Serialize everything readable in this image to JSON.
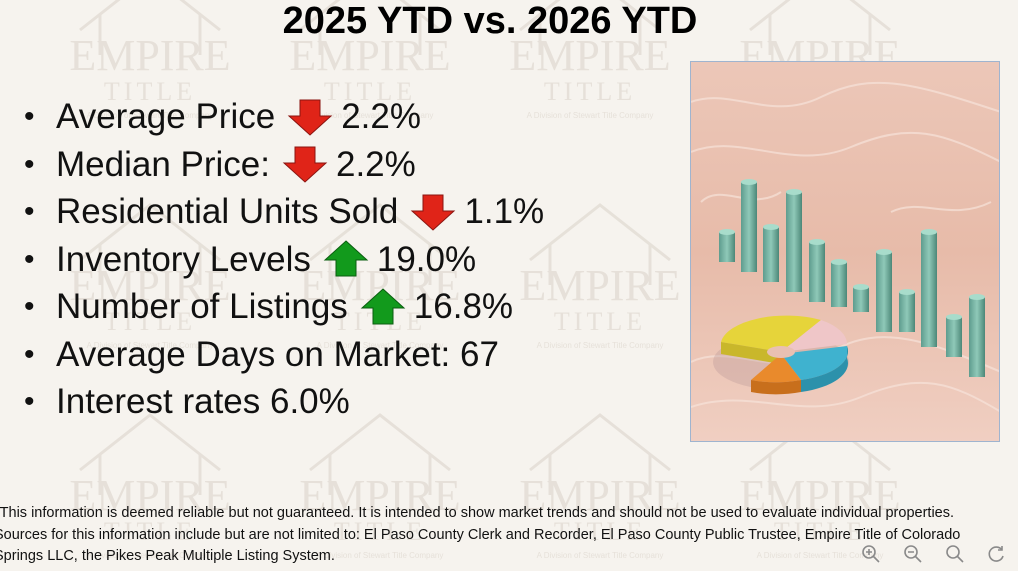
{
  "slide": {
    "title": "2025 YTD vs. 2026 YTD",
    "bullets": [
      {
        "label": "Average Price",
        "arrow": "down",
        "value": "2.2%"
      },
      {
        "label": "Median Price:",
        "arrow": "down",
        "value": "2.2%"
      },
      {
        "label": "Residential Units Sold",
        "arrow": "down",
        "value": "1.1%"
      },
      {
        "label": "Inventory Levels",
        "arrow": "up",
        "value": "19.0%"
      },
      {
        "label": "Number of Listings",
        "arrow": "up",
        "value": "16.8%"
      },
      {
        "label": "Average Days on Market: 67",
        "arrow": "",
        "value": ""
      },
      {
        "label": "Interest rates 6.0%",
        "arrow": "",
        "value": ""
      }
    ],
    "footnote": [
      "*This information is deemed reliable but not guaranteed.  It is intended to show market trends and should not be used to evaluate individual properties.",
      "Sources for this information include but are not limited to: El Paso County Clerk and Recorder, El Paso County Public Trustee, Empire Title of Colorado",
      "Springs LLC, the Pikes Peak Multiple Listing System."
    ]
  },
  "watermark": {
    "name": "EMPIRE",
    "sub": "TITLE",
    "tagline": "A Division of Stewart Title Company"
  },
  "colors": {
    "down_arrow": "#e02418",
    "up_arrow": "#129a1c",
    "background": "#f6f3ee",
    "watermark": "#d9d2c8"
  },
  "zoom_controls": [
    {
      "name": "zoom-in-icon",
      "label": "Zoom in"
    },
    {
      "name": "zoom-out-icon",
      "label": "Zoom out"
    },
    {
      "name": "search-icon",
      "label": "Search"
    },
    {
      "name": "rotate-icon",
      "label": "Rotate"
    }
  ]
}
